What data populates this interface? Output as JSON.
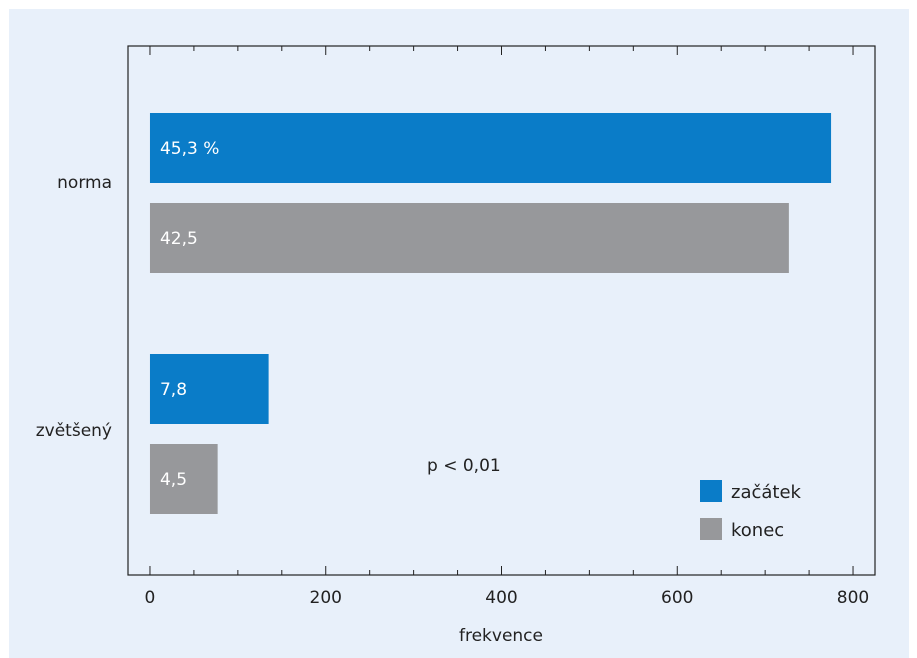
{
  "chart_data": {
    "type": "bar",
    "orientation": "horizontal",
    "categories": [
      "norma",
      "zvětšený"
    ],
    "series": [
      {
        "name": "začátek",
        "values": [
          775,
          135
        ],
        "labels": [
          "45,3 %",
          "7,8"
        ]
      },
      {
        "name": "konec",
        "values": [
          727,
          77
        ],
        "labels": [
          "42,5",
          "4,5"
        ]
      }
    ],
    "xlabel": "frekvence",
    "ylabel": "",
    "xlim": [
      -25,
      825
    ],
    "xticks": [
      0,
      200,
      400,
      600,
      800
    ],
    "annotation": "p < 0,01",
    "grid": false,
    "legend_position": "bottom-right",
    "colors": {
      "začátek": "#0a7cc8",
      "konec": "#97989b",
      "background": "#e8f0fa",
      "bar_label": "#ffffff",
      "text": "#222222",
      "axis": "#222222"
    }
  }
}
